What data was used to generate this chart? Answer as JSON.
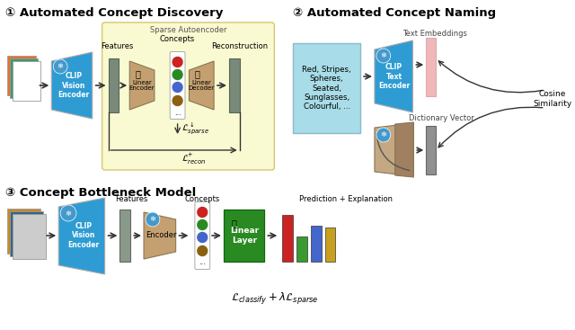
{
  "title1": "① Automated Concept Discovery",
  "title2": "② Automated Concept Naming",
  "title3": "③ Concept Bottleneck Model",
  "sparse_ae_label": "Sparse Autoencoder",
  "features_label": "Features",
  "concepts_label": "Concepts",
  "reconstruction_label": "Reconstruction",
  "linear_encoder_label": "Linear\nEncoder",
  "linear_decoder_label": "Linear\nDecoder",
  "clip_vision_label": "CLIP\nVision\nEncoder",
  "clip_text_label": "CLIP\nText\nEncoder",
  "text_embeddings_label": "Text Embeddings",
  "dict_vector_label": "Dictionary Vector",
  "cosine_sim_label": "Cosine\nSimilarity",
  "encoder_label": "Encoder",
  "linear_layer_label": "Linear\nLayer",
  "prediction_label": "Prediction + Explanation",
  "loss_sparse": "$\\mathcal{L}^{\\downarrow}_{sparse}$",
  "loss_recon": "$\\mathcal{L}^{+}_{recon}$",
  "loss_classify": "$\\mathcal{L}_{classify} + \\lambda\\mathcal{L}_{sparse}$",
  "text_box_content": "Red, Stripes,\nSpheres,\nSeated,\nSunglasses,\nColourful, ...",
  "bg_color": "#FFFFFF",
  "yellow_bg": "#FAFAD2",
  "yellow_border": "#D4C870",
  "clip_blue": "#2E9CD3",
  "tanh_color": "#C4A070",
  "text_box_blue": "#A8DCE8",
  "text_emb_pink": "#F0B8B8",
  "dict_gray": "#909090",
  "gray_rect": "#7A8A7A",
  "gray_rect2": "#8A9A8A",
  "green_layer": "#2A8A22",
  "red_bar": "#CC2222",
  "green_bar": "#3A9A32",
  "blue_bar": "#4466CC",
  "gold_bar": "#C8A020",
  "red_dot": "#CC2222",
  "green_dot": "#2A8A22",
  "blue_dot": "#4466CC",
  "brown_dot": "#8B6010",
  "fire_color": "#FF6600",
  "snowflake_color": "#AADDFF"
}
